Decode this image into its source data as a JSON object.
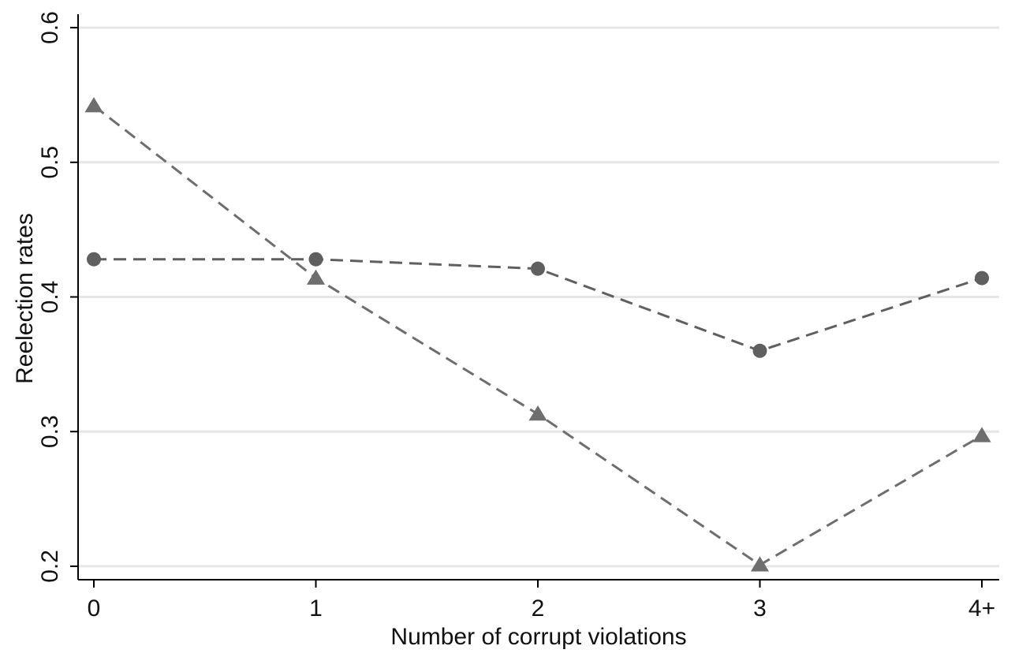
{
  "chart_data": {
    "type": "line",
    "title": "",
    "xlabel": "Number of corrupt violations",
    "ylabel": "Reelection rates",
    "categories": [
      "0",
      "1",
      "2",
      "3",
      "4+"
    ],
    "ylim": [
      0.19,
      0.61
    ],
    "yticks": [
      0.2,
      0.3,
      0.4,
      0.5,
      0.6
    ],
    "ytick_labels": [
      "0.2",
      "0.3",
      "0.4",
      "0.5",
      "0.6"
    ],
    "grid": true,
    "legend": "none",
    "series": [
      {
        "marker": "circle",
        "line_style": "dashed",
        "color": "#5f5f5f",
        "values": [
          0.428,
          0.428,
          0.421,
          0.36,
          0.414
        ]
      },
      {
        "marker": "triangle",
        "line_style": "dashed",
        "color": "#6e6e6e",
        "values": [
          0.542,
          0.414,
          0.313,
          0.201,
          0.297
        ]
      }
    ]
  }
}
